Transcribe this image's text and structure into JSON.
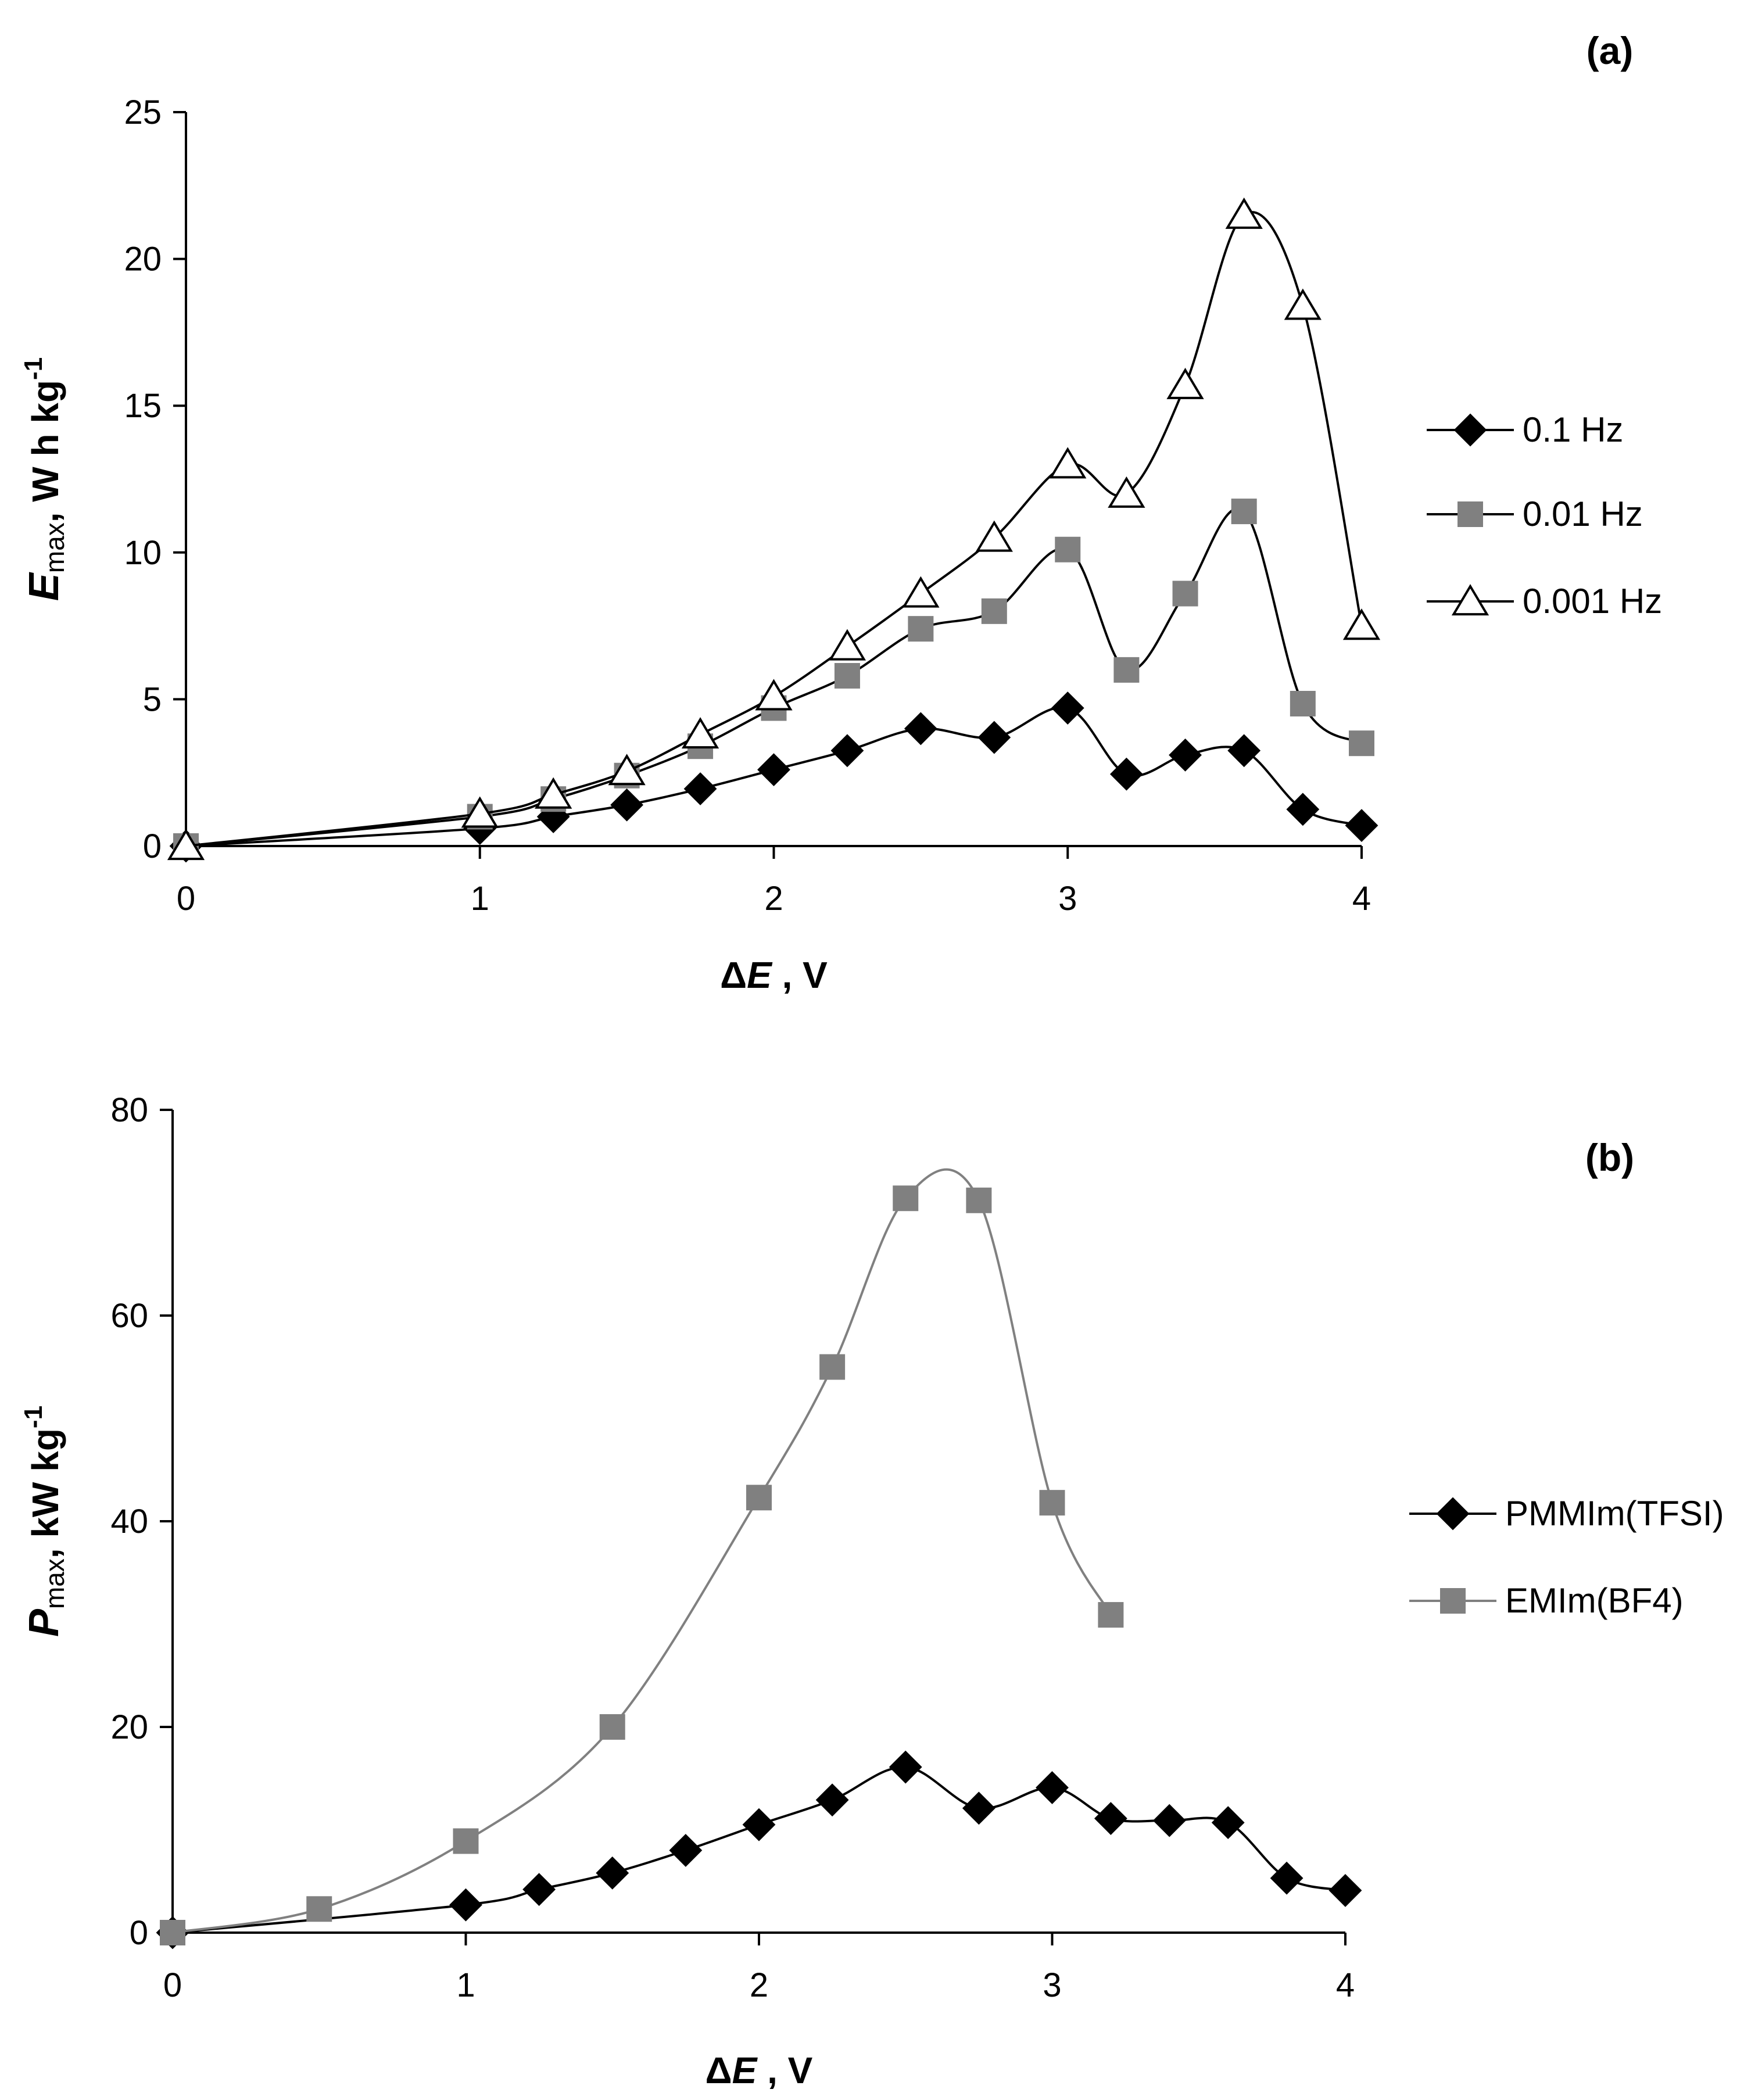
{
  "chart_data": [
    {
      "type": "line",
      "panel_label": "(a)",
      "ylabel": "E max, W h kg-1",
      "ylabel_parts": {
        "symbol": "E",
        "sub": "max",
        "unit": ", W h kg",
        "sup": "-1"
      },
      "xlabel_parts": {
        "delta": "Δ",
        "symbol": "E",
        "unit": " , V"
      },
      "xlim": [
        0,
        4
      ],
      "ylim": [
        0,
        25
      ],
      "xticks": [
        "0",
        "1",
        "2",
        "3",
        "4"
      ],
      "yticks": [
        "0",
        "5",
        "10",
        "15",
        "20",
        "25"
      ],
      "grid": false,
      "legend_position": "right",
      "series": [
        {
          "name": "0.1 Hz",
          "marker": "diamond",
          "color": "#000000",
          "line_color": "#000000",
          "x": [
            0,
            1,
            1.25,
            1.5,
            1.75,
            2,
            2.25,
            2.5,
            2.75,
            3,
            3.2,
            3.4,
            3.6,
            3.8,
            4
          ],
          "y": [
            0,
            0.6,
            1.0,
            1.4,
            1.95,
            2.6,
            3.25,
            4.0,
            3.7,
            4.7,
            2.45,
            3.1,
            3.25,
            1.25,
            0.7
          ]
        },
        {
          "name": "0.01 Hz",
          "marker": "square",
          "color": "#808080",
          "line_color": "#000000",
          "x": [
            0,
            1,
            1.25,
            1.5,
            1.75,
            2,
            2.25,
            2.5,
            2.75,
            3,
            3.2,
            3.4,
            3.6,
            3.8,
            4
          ],
          "y": [
            0,
            1.0,
            1.6,
            2.4,
            3.4,
            4.7,
            5.8,
            7.4,
            8.0,
            10.1,
            6.0,
            8.6,
            11.4,
            4.85,
            3.5
          ]
        },
        {
          "name": "0.001 Hz",
          "marker": "triangle",
          "color": "#ffffff",
          "line_color": "#000000",
          "x": [
            0,
            1,
            1.25,
            1.5,
            1.75,
            2,
            2.25,
            2.5,
            2.75,
            3,
            3.2,
            3.4,
            3.6,
            3.8,
            4
          ],
          "y": [
            0,
            1.1,
            1.75,
            2.55,
            3.8,
            5.1,
            6.8,
            8.6,
            10.5,
            13.0,
            12.0,
            15.7,
            21.5,
            18.4,
            7.5
          ]
        }
      ]
    },
    {
      "type": "line",
      "panel_label": "(b)",
      "ylabel": "P max, kW kg-1",
      "ylabel_parts": {
        "symbol": "P",
        "sub": "max",
        "unit": ", kW kg",
        "sup": "-1"
      },
      "xlabel_parts": {
        "delta": "Δ",
        "symbol": "E",
        "unit": " , V"
      },
      "xlim": [
        0,
        4
      ],
      "ylim": [
        0,
        80
      ],
      "xticks": [
        "0",
        "1",
        "2",
        "3",
        "4"
      ],
      "yticks": [
        "0",
        "20",
        "40",
        "60",
        "80"
      ],
      "grid": false,
      "legend_position": "right",
      "series": [
        {
          "name": "PMMIm(TFSI)",
          "marker": "diamond",
          "color": "#000000",
          "line_color": "#000000",
          "x": [
            0,
            1,
            1.25,
            1.5,
            1.75,
            2,
            2.25,
            2.5,
            2.75,
            3,
            3.2,
            3.4,
            3.6,
            3.8,
            4
          ],
          "y": [
            0,
            2.7,
            4.2,
            5.8,
            8.0,
            10.5,
            12.9,
            16.1,
            12.1,
            14.1,
            11.1,
            10.9,
            10.7,
            5.3,
            4.1
          ]
        },
        {
          "name": "EMIm(BF4)",
          "marker": "square",
          "color": "#808080",
          "line_color": "#808080",
          "x": [
            0,
            0.5,
            1,
            1.5,
            2,
            2.25,
            2.5,
            2.75,
            3,
            3.2
          ],
          "y": [
            0,
            2.3,
            8.9,
            20.0,
            42.3,
            55.0,
            71.4,
            71.2,
            41.8,
            30.9
          ]
        }
      ]
    }
  ]
}
